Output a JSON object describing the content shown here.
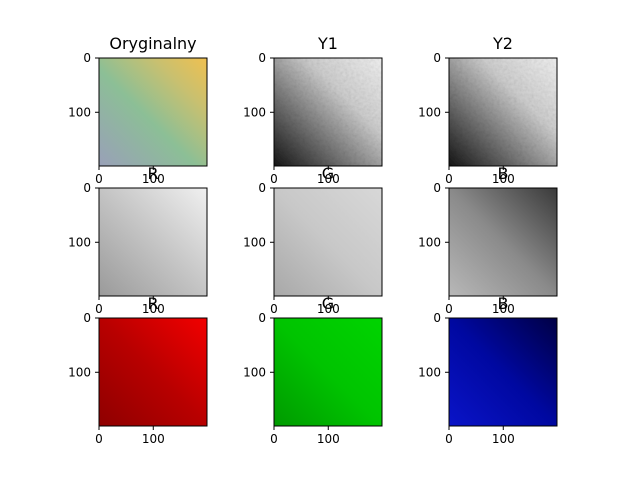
{
  "chart_data": {
    "type": "heatmap",
    "layout": "3x3 image grid",
    "panels": [
      {
        "title": "Oryginalny",
        "colormap": "rgb-composite",
        "xlim": [
          0,
          199
        ],
        "ylim": [
          199,
          0
        ],
        "xticks": [
          0,
          100
        ],
        "yticks": [
          0,
          100
        ]
      },
      {
        "title": "Y1",
        "colormap": "gray",
        "xlim": [
          0,
          199
        ],
        "ylim": [
          199,
          0
        ],
        "xticks": [
          0,
          100
        ],
        "yticks": [
          0,
          100
        ]
      },
      {
        "title": "Y2",
        "colormap": "gray",
        "xlim": [
          0,
          199
        ],
        "ylim": [
          199,
          0
        ],
        "xticks": [
          0,
          100
        ],
        "yticks": [
          0,
          100
        ]
      },
      {
        "title": "R",
        "colormap": "gray",
        "xlim": [
          0,
          199
        ],
        "ylim": [
          199,
          0
        ],
        "xticks": [
          0,
          100
        ],
        "yticks": [
          0,
          100
        ]
      },
      {
        "title": "G",
        "colormap": "gray",
        "xlim": [
          0,
          199
        ],
        "ylim": [
          199,
          0
        ],
        "xticks": [
          0,
          100
        ],
        "yticks": [
          0,
          100
        ]
      },
      {
        "title": "B",
        "colormap": "gray",
        "xlim": [
          0,
          199
        ],
        "ylim": [
          199,
          0
        ],
        "xticks": [
          0,
          100
        ],
        "yticks": [
          0,
          100
        ]
      },
      {
        "title": "R",
        "colormap": "Reds",
        "xlim": [
          0,
          199
        ],
        "ylim": [
          199,
          0
        ],
        "xticks": [
          0,
          100
        ],
        "yticks": [
          0,
          100
        ]
      },
      {
        "title": "G",
        "colormap": "Greens",
        "xlim": [
          0,
          199
        ],
        "ylim": [
          199,
          0
        ],
        "xticks": [
          0,
          100
        ],
        "yticks": [
          0,
          100
        ]
      },
      {
        "title": "B",
        "colormap": "Blues",
        "xlim": [
          0,
          199
        ],
        "ylim": [
          199,
          0
        ],
        "xticks": [
          0,
          100
        ],
        "yticks": [
          0,
          100
        ]
      }
    ],
    "grid": false,
    "legend": "none"
  },
  "colors": {
    "orig_top_left": "#a3c07e",
    "orig_top_right": "#f0c050",
    "orig_mid": "#8cbf96",
    "orig_bottom_left": "#99a0b8",
    "y_light": "#f2f2f2",
    "y_dark": "#151515",
    "r_light": "#f0f0f0",
    "r_dark": "#9a9a9a",
    "g_light": "#d8d8d8",
    "g_dark": "#a8a8a8",
    "b_light": "#3a3a3a",
    "b_dark": "#b8b8b8",
    "red_bright": "#f20000",
    "red_dark": "#8e0000",
    "green_bright": "#00d400",
    "green_dark": "#009a00",
    "blue_bright": "#0a14c8",
    "blue_dark": "#000045"
  }
}
